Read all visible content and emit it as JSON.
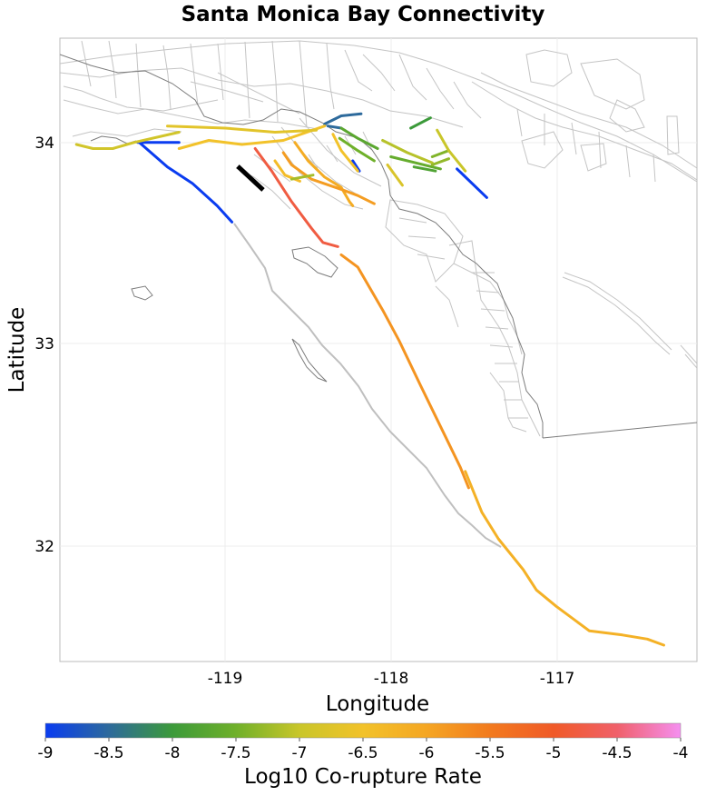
{
  "title": "Santa Monica Bay Connectivity",
  "xlabel": "Longitude",
  "ylabel": "Latitude",
  "x_ticks": [
    "-119",
    "-118",
    "-117"
  ],
  "y_ticks": [
    "34",
    "33",
    "32"
  ],
  "map": {
    "lon_range": [
      -120.0,
      -116.15
    ],
    "lat_range": [
      31.45,
      34.5
    ],
    "grid": true,
    "background_lines_color": "#bdbdbd",
    "coastline_color": "#7a7a7a"
  },
  "colorbar": {
    "label": "Log10 Co-rupture Rate",
    "min": -9,
    "max": -4,
    "tick_labels": [
      "-9",
      "-8.5",
      "-8",
      "-7.5",
      "-7",
      "-6.5",
      "-6",
      "-5.5",
      "-5",
      "-4.5",
      "-4"
    ],
    "stops": [
      {
        "value": -9,
        "color": "#0a3cf0"
      },
      {
        "value": -8.5,
        "color": "#2d6a9c"
      },
      {
        "value": -8,
        "color": "#3c9a3a"
      },
      {
        "value": -7.5,
        "color": "#6fb02a"
      },
      {
        "value": -7,
        "color": "#c9c62a"
      },
      {
        "value": -6.5,
        "color": "#f2c22a"
      },
      {
        "value": -6,
        "color": "#f5a623"
      },
      {
        "value": -5.5,
        "color": "#f27a1e"
      },
      {
        "value": -5,
        "color": "#f05a28"
      },
      {
        "value": -4.5,
        "color": "#f0606a"
      },
      {
        "value": -4,
        "color": "#f58ff0"
      }
    ]
  },
  "source_fault": {
    "name_shown": "",
    "color": "#000000"
  },
  "faults": [
    {
      "value": -9.0,
      "pts": [
        [
          -119.52,
          33.99
        ],
        [
          -119.35,
          33.87
        ],
        [
          -119.2,
          33.79
        ],
        [
          -119.05,
          33.68
        ],
        [
          -118.96,
          33.6
        ]
      ]
    },
    {
      "value": -9.0,
      "pts": [
        [
          -119.53,
          33.99
        ],
        [
          -119.28,
          33.99
        ]
      ]
    },
    {
      "value": -9.0,
      "pts": [
        [
          -117.6,
          33.86
        ],
        [
          -117.42,
          33.72
        ]
      ]
    },
    {
      "value": -9.0,
      "pts": [
        [
          -118.23,
          33.9
        ],
        [
          -118.19,
          33.85
        ]
      ]
    },
    {
      "value": -8.5,
      "pts": [
        [
          -118.4,
          34.08
        ],
        [
          -118.3,
          34.12
        ],
        [
          -118.18,
          34.13
        ]
      ]
    },
    {
      "value": -8.5,
      "pts": [
        [
          -118.38,
          34.07
        ],
        [
          -118.3,
          34.06
        ]
      ]
    },
    {
      "value": -6.9,
      "pts": [
        [
          -119.9,
          33.98
        ],
        [
          -119.8,
          33.96
        ],
        [
          -119.68,
          33.96
        ],
        [
          -119.55,
          33.99
        ],
        [
          -119.28,
          34.04
        ]
      ]
    },
    {
      "value": -6.5,
      "pts": [
        [
          -119.28,
          33.96
        ],
        [
          -119.1,
          34.0
        ],
        [
          -118.9,
          33.98
        ],
        [
          -118.65,
          34.0
        ],
        [
          -118.4,
          34.07
        ]
      ]
    },
    {
      "value": -6.7,
      "pts": [
        [
          -119.35,
          34.07
        ],
        [
          -119.0,
          34.06
        ],
        [
          -118.7,
          34.04
        ],
        [
          -118.45,
          34.05
        ]
      ]
    },
    {
      "value": -6.1,
      "pts": [
        [
          -118.58,
          33.99
        ],
        [
          -118.5,
          33.9
        ],
        [
          -118.4,
          33.82
        ],
        [
          -118.3,
          33.77
        ],
        [
          -118.25,
          33.7
        ],
        [
          -118.23,
          33.68
        ]
      ]
    },
    {
      "value": -5.9,
      "pts": [
        [
          -118.65,
          33.94
        ],
        [
          -118.6,
          33.88
        ],
        [
          -118.48,
          33.81
        ],
        [
          -118.3,
          33.76
        ],
        [
          -118.2,
          33.73
        ],
        [
          -118.1,
          33.69
        ]
      ]
    },
    {
      "value": -4.8,
      "pts": [
        [
          -118.82,
          33.96
        ],
        [
          -118.72,
          33.85
        ],
        [
          -118.6,
          33.7
        ],
        [
          -118.48,
          33.57
        ],
        [
          -118.41,
          33.5
        ],
        [
          -118.32,
          33.48
        ]
      ]
    },
    {
      "value": -6.4,
      "pts": [
        [
          -118.7,
          33.9
        ],
        [
          -118.64,
          33.83
        ],
        [
          -118.55,
          33.8
        ]
      ]
    },
    {
      "value": -7.2,
      "pts": [
        [
          -118.6,
          33.81
        ],
        [
          -118.47,
          33.83
        ]
      ]
    },
    {
      "value": -6.5,
      "pts": [
        [
          -118.35,
          34.03
        ],
        [
          -118.3,
          33.95
        ],
        [
          -118.2,
          33.85
        ]
      ]
    },
    {
      "value": -7.5,
      "pts": [
        [
          -118.31,
          34.01
        ],
        [
          -118.2,
          33.95
        ],
        [
          -118.1,
          33.9
        ]
      ]
    },
    {
      "value": -7.7,
      "pts": [
        [
          -118.3,
          34.06
        ],
        [
          -118.2,
          34.01
        ],
        [
          -118.08,
          33.96
        ]
      ]
    },
    {
      "value": -7.1,
      "pts": [
        [
          -118.05,
          34.0
        ],
        [
          -117.9,
          33.94
        ],
        [
          -117.75,
          33.89
        ]
      ]
    },
    {
      "value": -7.6,
      "pts": [
        [
          -118.0,
          33.92
        ],
        [
          -117.85,
          33.89
        ],
        [
          -117.7,
          33.86
        ]
      ]
    },
    {
      "value": -8.0,
      "pts": [
        [
          -117.88,
          34.06
        ],
        [
          -117.76,
          34.11
        ]
      ]
    },
    {
      "value": -7.8,
      "pts": [
        [
          -117.86,
          33.87
        ],
        [
          -117.73,
          33.85
        ]
      ]
    },
    {
      "value": -7.4,
      "pts": [
        [
          -117.75,
          33.92
        ],
        [
          -117.65,
          33.95
        ]
      ]
    },
    {
      "value": -7.3,
      "pts": [
        [
          -117.75,
          33.88
        ],
        [
          -117.65,
          33.91
        ]
      ]
    },
    {
      "value": -7.0,
      "pts": [
        [
          -117.72,
          34.05
        ],
        [
          -117.65,
          33.95
        ],
        [
          -117.55,
          33.85
        ]
      ]
    },
    {
      "value": -6.8,
      "pts": [
        [
          -118.02,
          33.88
        ],
        [
          -117.93,
          33.78
        ]
      ]
    },
    {
      "value": -5.8,
      "pts": [
        [
          -118.3,
          33.44
        ],
        [
          -118.2,
          33.38
        ],
        [
          -118.05,
          33.17
        ],
        [
          -117.95,
          33.02
        ],
        [
          -117.82,
          32.8
        ],
        [
          -117.7,
          32.6
        ],
        [
          -117.58,
          32.4
        ],
        [
          -117.53,
          32.3
        ]
      ]
    },
    {
      "value": -6.2,
      "pts": [
        [
          -117.55,
          32.38
        ],
        [
          -117.45,
          32.18
        ],
        [
          -117.35,
          32.05
        ],
        [
          -117.2,
          31.9
        ],
        [
          -117.12,
          31.8
        ],
        [
          -117.0,
          31.72
        ],
        [
          -116.8,
          31.6
        ],
        [
          -116.6,
          31.58
        ],
        [
          -116.45,
          31.56
        ],
        [
          -116.35,
          31.53
        ]
      ]
    }
  ]
}
